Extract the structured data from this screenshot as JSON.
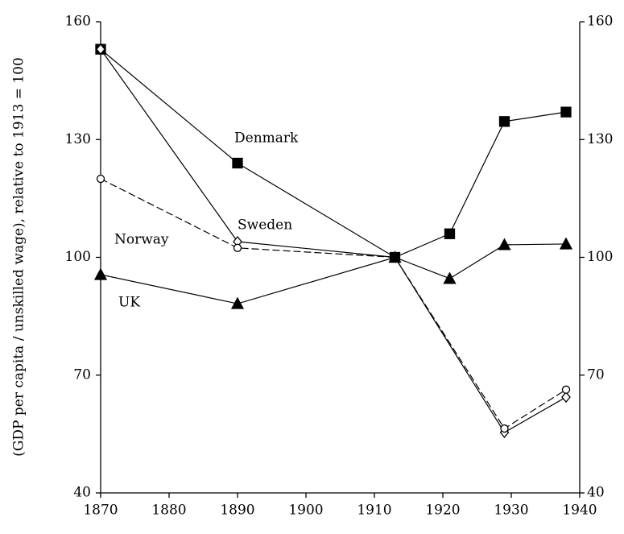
{
  "chart_data": {
    "type": "line",
    "y_label": "(GDP per capita / unskilled wage), relative to 1913 = 100",
    "xlim": [
      1870,
      1940
    ],
    "xticks": [
      1870,
      1880,
      1890,
      1900,
      1910,
      1920,
      1930,
      1940
    ],
    "ylim": [
      40,
      160
    ],
    "yticks": [
      40,
      70,
      100,
      130,
      160
    ],
    "y2lim": [
      40,
      160
    ],
    "y2ticks": [
      40,
      70,
      100,
      130,
      160
    ],
    "series": [
      {
        "name": "Denmark",
        "color": "#000000",
        "marker": "square",
        "dashed": false,
        "x": [
          1870,
          1890,
          1913,
          1921,
          1929,
          1938
        ],
        "values": [
          153,
          124,
          100,
          106,
          134.6,
          137
        ]
      },
      {
        "name": "Sweden",
        "color": "#000000",
        "marker": "diamond",
        "dashed": false,
        "x": [
          1870,
          1890,
          1913,
          1929,
          1938
        ],
        "values": [
          153,
          104,
          100,
          55.4,
          64.4
        ]
      },
      {
        "name": "Norway",
        "color": "#000000",
        "marker": "circle",
        "dashed": true,
        "x": [
          1870,
          1890,
          1913,
          1929,
          1938
        ],
        "values": [
          120,
          102.4,
          100,
          56.4,
          66.3
        ]
      },
      {
        "name": "UK",
        "color": "#000000",
        "marker": "triangle",
        "dashed": false,
        "x": [
          1870,
          1890,
          1913,
          1921,
          1929,
          1938
        ],
        "values": [
          95.6,
          88.2,
          100,
          94.6,
          103.2,
          103.4
        ]
      }
    ]
  }
}
